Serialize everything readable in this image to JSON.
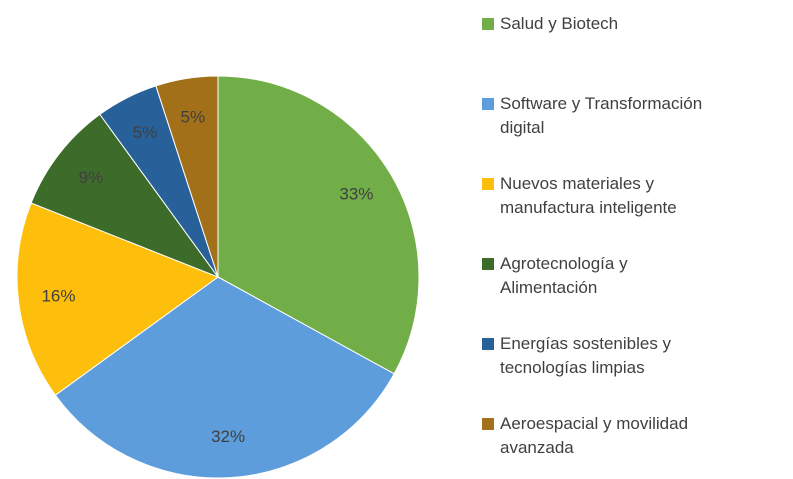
{
  "chart_data": {
    "type": "pie",
    "categories": [
      "Salud y Biotech",
      "Software y Transformación\ndigital",
      "Nuevos materiales y\nmanufactura inteligente",
      "Agrotecnología y\nAlimentación",
      "Energías sostenibles y\ntecnologías limpias",
      "Aeroespacial y movilidad\navanzada"
    ],
    "values": [
      33,
      32,
      16,
      9,
      5,
      5
    ],
    "value_labels": [
      "33%",
      "32%",
      "16%",
      "9%",
      "5%",
      "5%"
    ],
    "colors": [
      "#72ae48",
      "#5e9ddb",
      "#fdbf0b",
      "#3d6b29",
      "#28609a",
      "#a3701a"
    ]
  }
}
